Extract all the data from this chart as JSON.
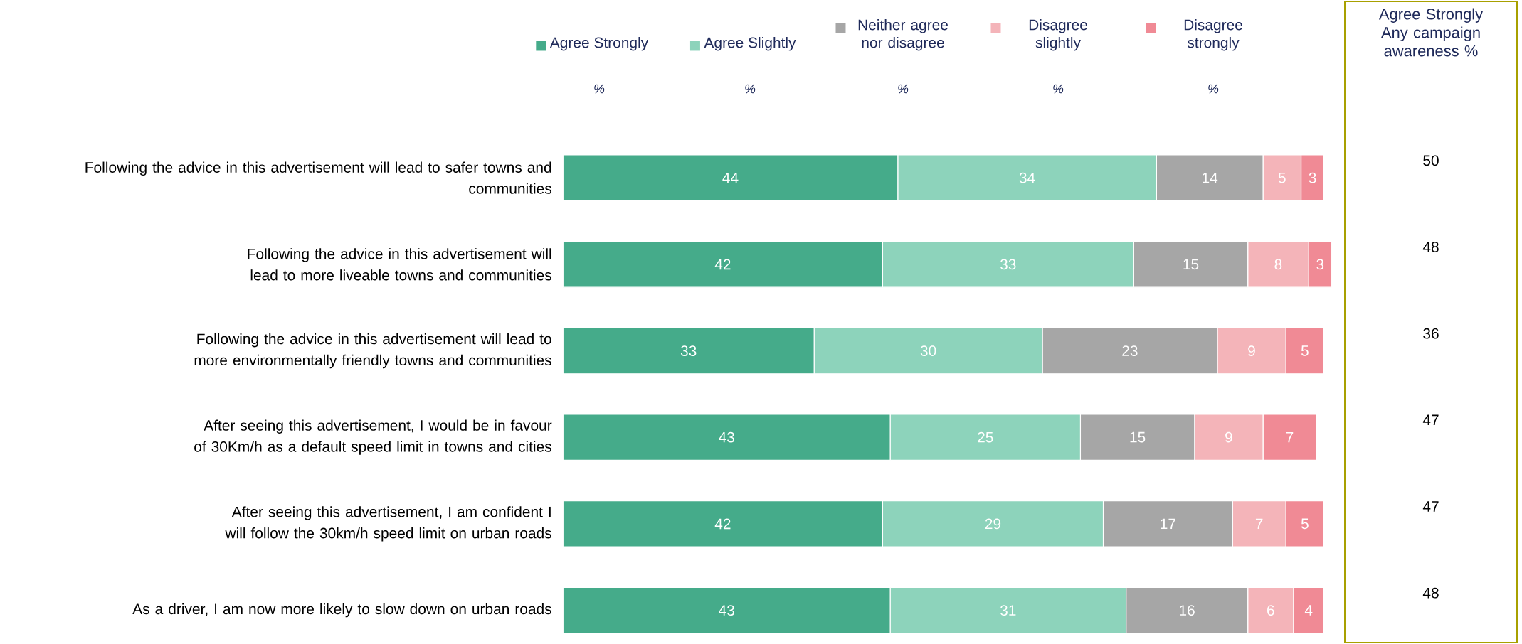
{
  "chart_data": [
    {
      "type": "bar",
      "orientation": "horizontal",
      "stacked": true,
      "data_labels": true,
      "legend": "top",
      "categories": [
        "Following the advice in this advertisement will lead to safer towns and communities",
        "Following the advice in this advertisement will lead to more liveable towns and communities",
        "Following the advice in this advertisement will lead to more environmentally friendly towns and communities",
        "After seeing this advertisement, I would be in favour of 30Km/h as a default speed limit in towns and cities",
        "After seeing this advertisement, I am confident I will follow the 30km/h speed limit on urban roads",
        "As a driver, I am now more likely to slow down on urban roads"
      ],
      "series": [
        {
          "name": "Agree Strongly",
          "color": "#45ab8a",
          "values": [
            44,
            42,
            33,
            43,
            42,
            43
          ]
        },
        {
          "name": "Agree Slightly",
          "color": "#8dd3bb",
          "values": [
            34,
            33,
            30,
            25,
            29,
            31
          ]
        },
        {
          "name": "Neither agree nor disagree",
          "color": "#a6a6a6",
          "values": [
            14,
            15,
            23,
            15,
            17,
            16
          ]
        },
        {
          "name": "Disagree slightly",
          "color": "#f4b4b9",
          "values": [
            5,
            8,
            9,
            9,
            7,
            6
          ]
        },
        {
          "name": "Disagree strongly",
          "color": "#f08a95",
          "values": [
            3,
            3,
            5,
            7,
            5,
            4
          ]
        }
      ],
      "annotations": [
        "%",
        "%",
        "%",
        "%",
        "%"
      ]
    },
    {
      "type": "other",
      "title": "Agree Strongly Any campaign awareness %",
      "categories": [
        null,
        null,
        null,
        null,
        null,
        null
      ],
      "values": [
        50,
        48,
        36,
        47,
        47,
        48
      ],
      "data_labels": true
    }
  ]
}
